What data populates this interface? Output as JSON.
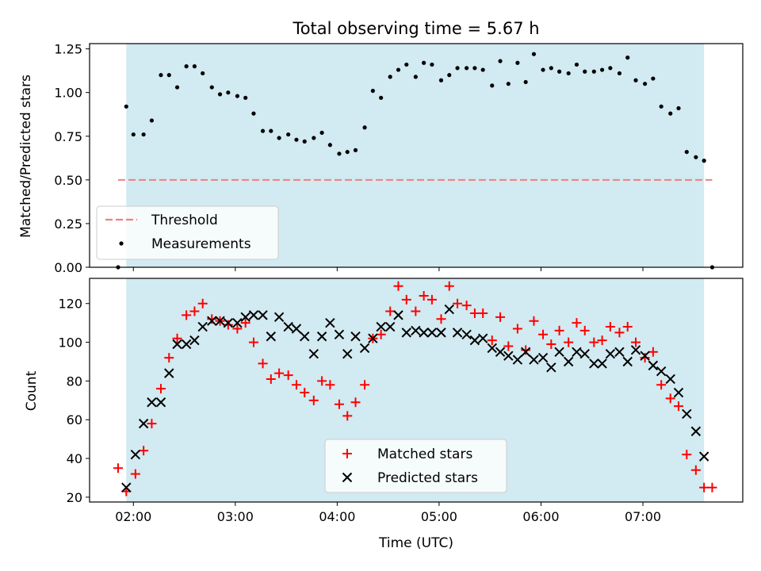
{
  "chart_data": {
    "title": "Total observing time = 5.67 h",
    "xlabel": "Time (UTC)",
    "x_unit": "hours UTC",
    "xlim": [
      1.57,
      7.98
    ],
    "x_ticks": [
      {
        "value": 2,
        "label": "02:00"
      },
      {
        "value": 3,
        "label": "03:00"
      },
      {
        "value": 4,
        "label": "04:00"
      },
      {
        "value": 5,
        "label": "05:00"
      },
      {
        "value": 6,
        "label": "06:00"
      },
      {
        "value": 7,
        "label": "07:00"
      }
    ],
    "observing_window": {
      "start": 1.93,
      "end": 7.6,
      "color": "#add8e6"
    },
    "panels": [
      {
        "type": "scatter",
        "ylabel": "Matched/Predicted stars",
        "ylim": [
          0,
          1.28
        ],
        "y_ticks": [
          "0.00",
          "0.25",
          "0.50",
          "0.75",
          "1.00",
          "1.25"
        ],
        "legend_position": "lower-left",
        "threshold": {
          "name": "Threshold",
          "value": 0.5,
          "x_range": [
            1.85,
            7.68
          ],
          "color": "#f08080"
        },
        "series": [
          {
            "name": "Measurements",
            "color": "#000000",
            "marker": "dot",
            "x": [
              1.85,
              1.93,
              2.0,
              2.1,
              2.18,
              2.27,
              2.35,
              2.43,
              2.52,
              2.6,
              2.68,
              2.77,
              2.85,
              2.93,
              3.02,
              3.1,
              3.18,
              3.27,
              3.35,
              3.43,
              3.52,
              3.6,
              3.68,
              3.77,
              3.85,
              3.93,
              4.02,
              4.1,
              4.18,
              4.27,
              4.35,
              4.43,
              4.52,
              4.6,
              4.68,
              4.77,
              4.85,
              4.93,
              5.02,
              5.1,
              5.18,
              5.27,
              5.35,
              5.43,
              5.52,
              5.6,
              5.68,
              5.77,
              5.85,
              5.93,
              6.02,
              6.1,
              6.18,
              6.27,
              6.35,
              6.43,
              6.52,
              6.6,
              6.68,
              6.77,
              6.85,
              6.93,
              7.02,
              7.1,
              7.18,
              7.27,
              7.35,
              7.43,
              7.52,
              7.6,
              7.68
            ],
            "y": [
              0,
              0.92,
              0.76,
              0.76,
              0.84,
              1.1,
              1.1,
              1.03,
              1.15,
              1.15,
              1.11,
              1.03,
              0.99,
              1.0,
              0.98,
              0.97,
              0.88,
              0.78,
              0.78,
              0.74,
              0.76,
              0.73,
              0.72,
              0.74,
              0.77,
              0.7,
              0.65,
              0.66,
              0.67,
              0.8,
              1.01,
              0.97,
              1.09,
              1.13,
              1.16,
              1.09,
              1.17,
              1.16,
              1.07,
              1.1,
              1.14,
              1.14,
              1.14,
              1.13,
              1.04,
              1.18,
              1.05,
              1.17,
              1.06,
              1.22,
              1.13,
              1.14,
              1.12,
              1.11,
              1.16,
              1.12,
              1.12,
              1.13,
              1.14,
              1.11,
              1.2,
              1.07,
              1.05,
              1.08,
              0.92,
              0.88,
              0.91,
              0.66,
              0.63,
              0.61,
              0
            ]
          }
        ]
      },
      {
        "type": "scatter",
        "ylabel": "Count",
        "ylim": [
          17.5,
          133
        ],
        "y_ticks": [
          "20",
          "40",
          "60",
          "80",
          "100",
          "120"
        ],
        "legend_position": "lower-center",
        "series": [
          {
            "name": "Matched stars",
            "color": "#ff0000",
            "marker": "plus",
            "x": [
              1.85,
              1.93,
              2.02,
              2.1,
              2.18,
              2.27,
              2.35,
              2.43,
              2.52,
              2.6,
              2.68,
              2.77,
              2.85,
              2.93,
              3.02,
              3.1,
              3.18,
              3.27,
              3.35,
              3.43,
              3.52,
              3.6,
              3.68,
              3.77,
              3.85,
              3.93,
              4.02,
              4.1,
              4.18,
              4.27,
              4.35,
              4.43,
              4.52,
              4.6,
              4.68,
              4.77,
              4.85,
              4.93,
              5.02,
              5.1,
              5.18,
              5.27,
              5.35,
              5.43,
              5.52,
              5.6,
              5.68,
              5.77,
              5.85,
              5.93,
              6.02,
              6.1,
              6.18,
              6.27,
              6.35,
              6.43,
              6.52,
              6.6,
              6.68,
              6.77,
              6.85,
              6.93,
              7.02,
              7.1,
              7.18,
              7.27,
              7.35,
              7.43,
              7.52,
              7.6,
              7.68
            ],
            "y": [
              35,
              23,
              32,
              44,
              58,
              76,
              92,
              102,
              114,
              116,
              120,
              112,
              111,
              109,
              107,
              110,
              100,
              89,
              81,
              84,
              83,
              78,
              74,
              70,
              80,
              78,
              68,
              62,
              69,
              78,
              102,
              104,
              116,
              129,
              122,
              116,
              124,
              122,
              112,
              129,
              120,
              119,
              115,
              115,
              101,
              113,
              98,
              107,
              96,
              111,
              104,
              99,
              106,
              100,
              110,
              106,
              100,
              101,
              108,
              105,
              108,
              100,
              92,
              95,
              78,
              71,
              67,
              42,
              34,
              25,
              25
            ]
          },
          {
            "name": "Predicted stars",
            "color": "#000000",
            "marker": "x",
            "x": [
              1.93,
              2.02,
              2.1,
              2.18,
              2.27,
              2.35,
              2.43,
              2.52,
              2.6,
              2.68,
              2.77,
              2.85,
              2.93,
              3.02,
              3.1,
              3.18,
              3.27,
              3.35,
              3.43,
              3.52,
              3.6,
              3.68,
              3.77,
              3.85,
              3.93,
              4.02,
              4.1,
              4.18,
              4.27,
              4.35,
              4.43,
              4.52,
              4.6,
              4.68,
              4.77,
              4.85,
              4.93,
              5.02,
              5.1,
              5.18,
              5.27,
              5.35,
              5.43,
              5.52,
              5.6,
              5.68,
              5.77,
              5.85,
              5.93,
              6.02,
              6.1,
              6.18,
              6.27,
              6.35,
              6.43,
              6.52,
              6.6,
              6.68,
              6.77,
              6.85,
              6.93,
              7.02,
              7.1,
              7.18,
              7.27,
              7.35,
              7.43,
              7.52,
              7.6
            ],
            "y": [
              25,
              42,
              58,
              69,
              69,
              84,
              99,
              99,
              101,
              108,
              111,
              111,
              110,
              110,
              113,
              114,
              114,
              103,
              113,
              108,
              107,
              103,
              94,
              103,
              110,
              104,
              94,
              103,
              97,
              102,
              108,
              108,
              114,
              105,
              106,
              105,
              105,
              105,
              117,
              105,
              104,
              101,
              102,
              97,
              95,
              93,
              91,
              95,
              91,
              92,
              87,
              95,
              90,
              95,
              94,
              89,
              89,
              94,
              95,
              90,
              96,
              93,
              88,
              85,
              81,
              74,
              63,
              54,
              41
            ]
          }
        ]
      }
    ]
  }
}
